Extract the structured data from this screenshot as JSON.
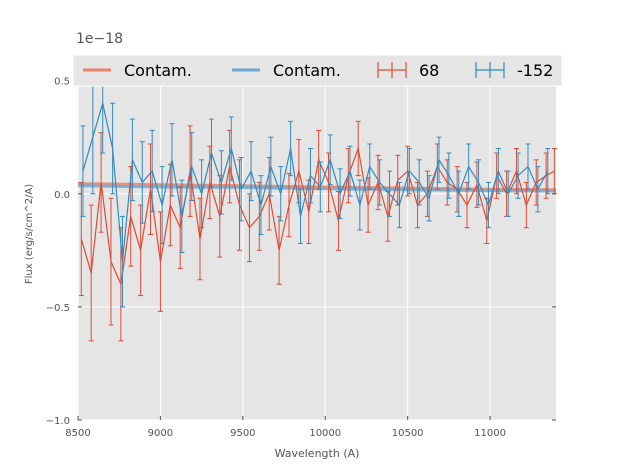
{
  "chart_data": {
    "type": "line",
    "title": "",
    "xlabel": "Wavelength (A)",
    "ylabel": "Flux (erg/s/cm^2/A)",
    "offset_label": "1e−18",
    "xlim": [
      8500,
      11400
    ],
    "ylim": [
      -1.0,
      0.6
    ],
    "grid": true,
    "legend_position": "top",
    "x_ticks": [
      {
        "value": 8500,
        "label": "8500"
      },
      {
        "value": 9000,
        "label": "9000"
      },
      {
        "value": 9500,
        "label": "9500"
      },
      {
        "value": 10000,
        "label": "10000"
      },
      {
        "value": 10500,
        "label": "10500"
      },
      {
        "value": 11000,
        "label": "11000"
      }
    ],
    "y_ticks": [
      {
        "value": -1.0,
        "label": "−1.0"
      },
      {
        "value": -0.5,
        "label": "−0.5"
      },
      {
        "value": 0.0,
        "label": "0.0"
      },
      {
        "value": 0.5,
        "label": "0.5"
      }
    ],
    "legend": [
      {
        "kind": "line",
        "label": "Contam.",
        "color": "#E8826A"
      },
      {
        "kind": "line",
        "label": "Contam.",
        "color": "#6FA9CF"
      },
      {
        "kind": "errorbar",
        "label": "68",
        "color": "#E24A33"
      },
      {
        "kind": "errorbar",
        "label": "-152",
        "color": "#348ABD"
      }
    ],
    "series": [
      {
        "name": "Contam.",
        "kind": "line",
        "color": "#E8826A",
        "x": [
          8500,
          9000,
          9500,
          10000,
          10500,
          11000,
          11400
        ],
        "y": [
          0.045,
          0.04,
          0.035,
          0.03,
          0.025,
          0.02,
          0.018
        ]
      },
      {
        "name": "Contam.",
        "kind": "line",
        "color": "#6FA9CF",
        "x": [
          8500,
          9000,
          9500,
          10000,
          10500,
          11000,
          11400
        ],
        "y": [
          0.035,
          0.03,
          0.028,
          0.022,
          0.018,
          0.014,
          0.012
        ]
      },
      {
        "name": "68",
        "kind": "errorbar",
        "color": "#E24A33",
        "x": [
          8520,
          8580,
          8640,
          8700,
          8760,
          8820,
          8880,
          8940,
          9000,
          9060,
          9120,
          9180,
          9240,
          9300,
          9360,
          9420,
          9480,
          9540,
          9600,
          9660,
          9720,
          9780,
          9840,
          9900,
          9960,
          10020,
          10080,
          10140,
          10200,
          10260,
          10320,
          10380,
          10440,
          10500,
          10560,
          10620,
          10680,
          10740,
          10800,
          10860,
          10920,
          10980,
          11040,
          11100,
          11160,
          11220,
          11280,
          11340,
          11390
        ],
        "y": [
          -0.2,
          -0.35,
          0.05,
          -0.3,
          -0.4,
          -0.1,
          -0.25,
          0.02,
          -0.3,
          -0.05,
          -0.15,
          0.1,
          -0.2,
          0.05,
          -0.1,
          0.12,
          -0.05,
          -0.15,
          -0.1,
          0.0,
          -0.25,
          -0.05,
          0.1,
          -0.08,
          0.15,
          0.05,
          -0.12,
          0.08,
          0.2,
          -0.05,
          0.05,
          -0.1,
          0.06,
          0.1,
          -0.05,
          0.0,
          0.12,
          0.05,
          0.02,
          -0.05,
          0.04,
          -0.12,
          0.08,
          0.0,
          0.1,
          -0.05,
          0.05,
          0.08,
          0.1
        ],
        "err": [
          0.25,
          0.3,
          0.22,
          0.28,
          0.25,
          0.22,
          0.2,
          0.2,
          0.22,
          0.18,
          0.18,
          0.2,
          0.18,
          0.16,
          0.18,
          0.16,
          0.2,
          0.15,
          0.15,
          0.16,
          0.15,
          0.14,
          0.14,
          0.14,
          0.13,
          0.13,
          0.13,
          0.12,
          0.12,
          0.12,
          0.12,
          0.11,
          0.11,
          0.11,
          0.1,
          0.1,
          0.1,
          0.1,
          0.1,
          0.1,
          0.1,
          0.1,
          0.1,
          0.1,
          0.1,
          0.1,
          0.1,
          0.1,
          0.1
        ]
      },
      {
        "name": "-152",
        "kind": "errorbar",
        "color": "#348ABD",
        "x": [
          8530,
          8590,
          8650,
          8710,
          8770,
          8830,
          8890,
          8950,
          9010,
          9070,
          9130,
          9190,
          9250,
          9310,
          9370,
          9430,
          9490,
          9550,
          9610,
          9670,
          9730,
          9790,
          9850,
          9910,
          9970,
          10030,
          10090,
          10150,
          10210,
          10270,
          10330,
          10390,
          10450,
          10510,
          10570,
          10630,
          10690,
          10750,
          10810,
          10870,
          10930,
          10990,
          11050,
          11110,
          11170,
          11230,
          11290,
          11350
        ],
        "y": [
          0.1,
          0.25,
          0.4,
          0.2,
          -0.3,
          0.15,
          0.05,
          0.1,
          -0.05,
          0.15,
          -0.1,
          0.12,
          0.0,
          0.18,
          0.05,
          0.2,
          0.02,
          0.1,
          -0.05,
          0.12,
          0.0,
          0.2,
          -0.1,
          0.08,
          0.03,
          0.15,
          0.0,
          0.1,
          -0.05,
          0.12,
          0.05,
          0.0,
          -0.05,
          0.1,
          0.05,
          -0.02,
          0.15,
          0.08,
          0.0,
          0.12,
          0.05,
          -0.05,
          0.1,
          0.0,
          0.08,
          0.12,
          0.02,
          0.1
        ],
        "err": [
          0.2,
          0.25,
          0.22,
          0.2,
          0.2,
          0.18,
          0.18,
          0.18,
          0.17,
          0.16,
          0.16,
          0.15,
          0.15,
          0.15,
          0.14,
          0.14,
          0.14,
          0.13,
          0.13,
          0.13,
          0.12,
          0.12,
          0.12,
          0.12,
          0.11,
          0.11,
          0.11,
          0.11,
          0.11,
          0.1,
          0.1,
          0.1,
          0.1,
          0.1,
          0.1,
          0.1,
          0.1,
          0.1,
          0.1,
          0.1,
          0.1,
          0.1,
          0.1,
          0.1,
          0.1,
          0.1,
          0.1,
          0.1
        ]
      }
    ]
  }
}
